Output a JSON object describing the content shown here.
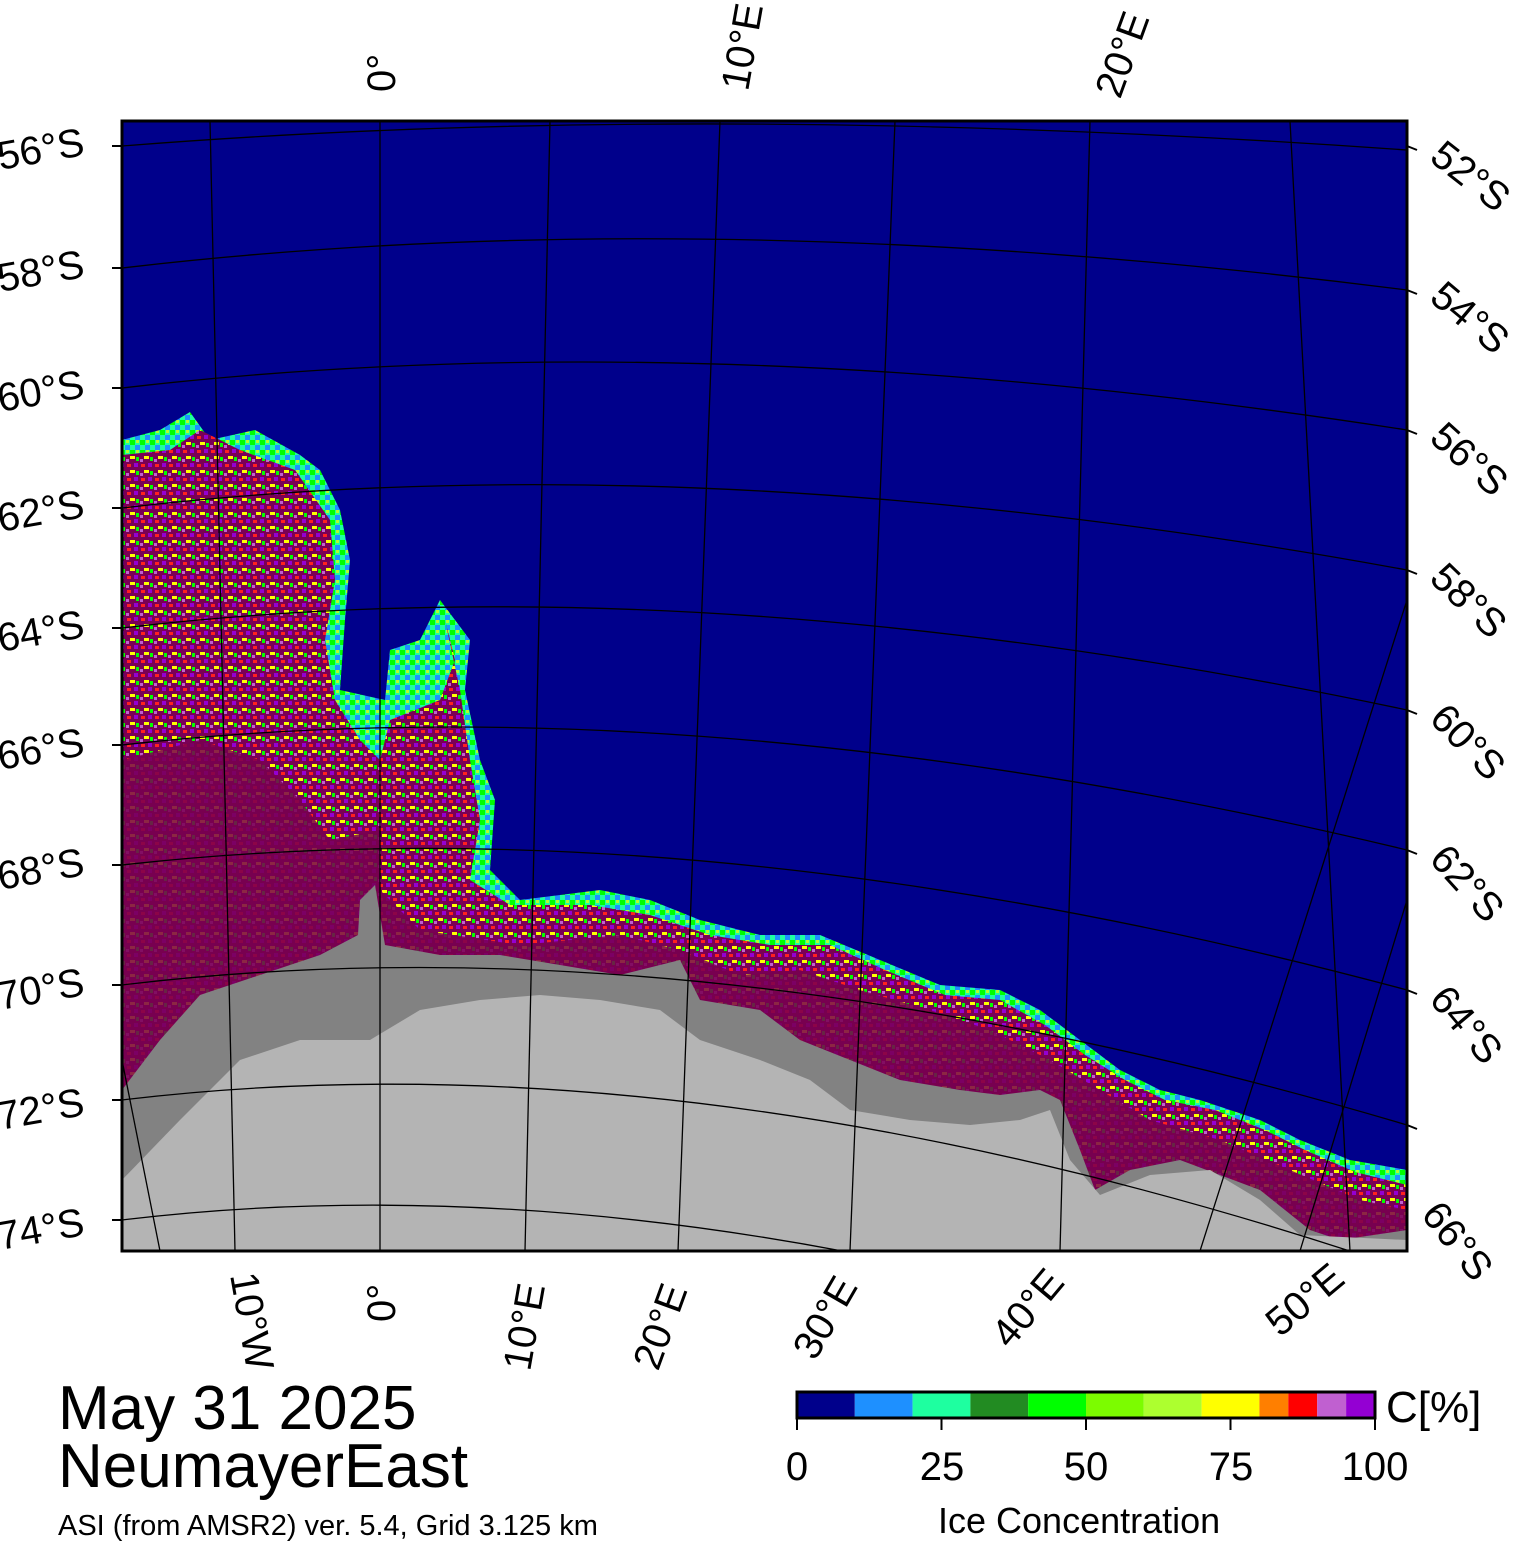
{
  "map": {
    "date": "May 31 2025",
    "region": "NeumayerEast",
    "product": "ASI (from AMSR2) ver. 5.4,  Grid 3.125 km",
    "colors": {
      "ocean": "#00008b",
      "land": "#b4b4b4",
      "ice_shelf": "#828282",
      "high_ice": "#780050",
      "frame": "#000000"
    },
    "top_lon_labels": [
      "0°",
      "10°E",
      "20°E"
    ],
    "bottom_lon_labels": [
      "10°W",
      "0°",
      "10°E",
      "20°E",
      "30°E",
      "40°E",
      "50°E"
    ],
    "left_lat_labels": [
      "56°S",
      "58°S",
      "60°S",
      "62°S",
      "64°S",
      "66°S",
      "68°S",
      "70°S",
      "72°S",
      "74°S"
    ],
    "right_lat_labels": [
      "52°S",
      "54°S",
      "56°S",
      "58°S",
      "60°S",
      "62°S",
      "64°S",
      "66°S"
    ]
  },
  "colorbar": {
    "title": "Ice Concentration",
    "unit": "C[%]",
    "tick_labels": [
      "0",
      "25",
      "50",
      "75",
      "100"
    ],
    "bins": [
      {
        "min": 0,
        "max": 10,
        "color": "#00008b"
      },
      {
        "min": 10,
        "max": 20,
        "color": "#1e90ff"
      },
      {
        "min": 20,
        "max": 30,
        "color": "#1effa0"
      },
      {
        "min": 30,
        "max": 40,
        "color": "#228b22"
      },
      {
        "min": 40,
        "max": 50,
        "color": "#00ff00"
      },
      {
        "min": 50,
        "max": 60,
        "color": "#7cfc00"
      },
      {
        "min": 60,
        "max": 70,
        "color": "#adff2f"
      },
      {
        "min": 70,
        "max": 80,
        "color": "#ffff00"
      },
      {
        "min": 80,
        "max": 85,
        "color": "#ff7f00"
      },
      {
        "min": 85,
        "max": 90,
        "color": "#ff0000"
      },
      {
        "min": 90,
        "max": 95,
        "color": "#c060d0"
      },
      {
        "min": 95,
        "max": 100,
        "color": "#9400d3"
      }
    ]
  }
}
